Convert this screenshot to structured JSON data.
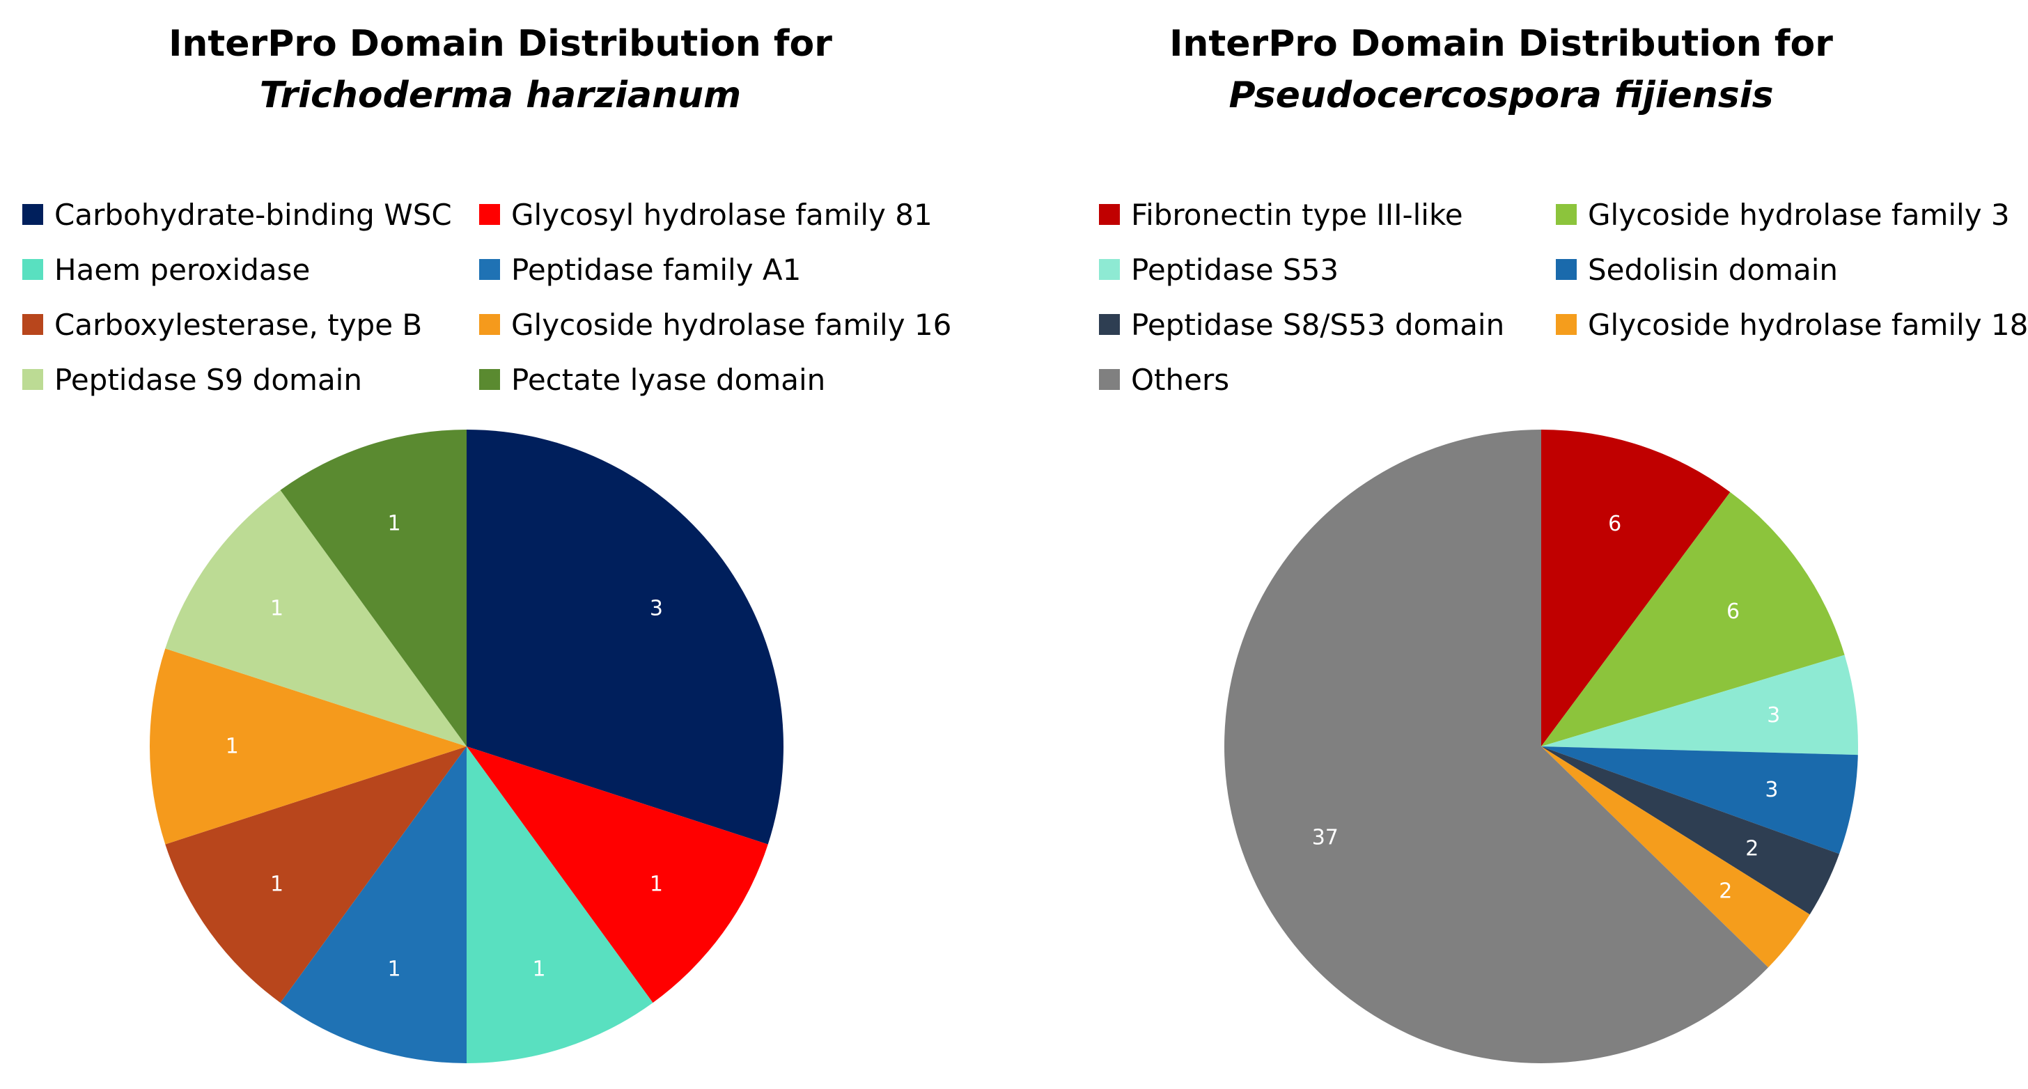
{
  "chart_data": [
    {
      "type": "pie",
      "title": "InterPro Domain Distribution for",
      "subtitle": "Trichoderma harzianum",
      "legend_position": "top",
      "categories": [
        "Carbohydrate-binding WSC",
        "Glycosyl hydrolase family 81",
        "Haem peroxidase",
        "Peptidase family A1",
        "Carboxylesterase, type B",
        "Glycoside hydrolase family 16",
        "Peptidase S9 domain",
        "Pectate lyase domain"
      ],
      "values": [
        3,
        1,
        1,
        1,
        1,
        1,
        1,
        1
      ],
      "colors": [
        "#001f5c",
        "#ff0000",
        "#59e0c0",
        "#1f72b4",
        "#b8461c",
        "#f59a1c",
        "#bcdb94",
        "#5a8a30"
      ]
    },
    {
      "type": "pie",
      "title": "InterPro Domain Distribution for",
      "subtitle": "Pseudocercospora fijiensis",
      "legend_position": "top",
      "categories": [
        "Fibronectin type III-like",
        "Glycoside hydrolase family 3",
        "Peptidase S53",
        "Sedolisin domain",
        "Peptidase S8/S53 domain",
        "Glycoside hydrolase family 18",
        "Others"
      ],
      "values": [
        6,
        6,
        3,
        3,
        2,
        2,
        37
      ],
      "colors": [
        "#c00000",
        "#8cc43c",
        "#8eead3",
        "#1a6aac",
        "#2e3e52",
        "#f59d1c",
        "#808080"
      ]
    }
  ]
}
